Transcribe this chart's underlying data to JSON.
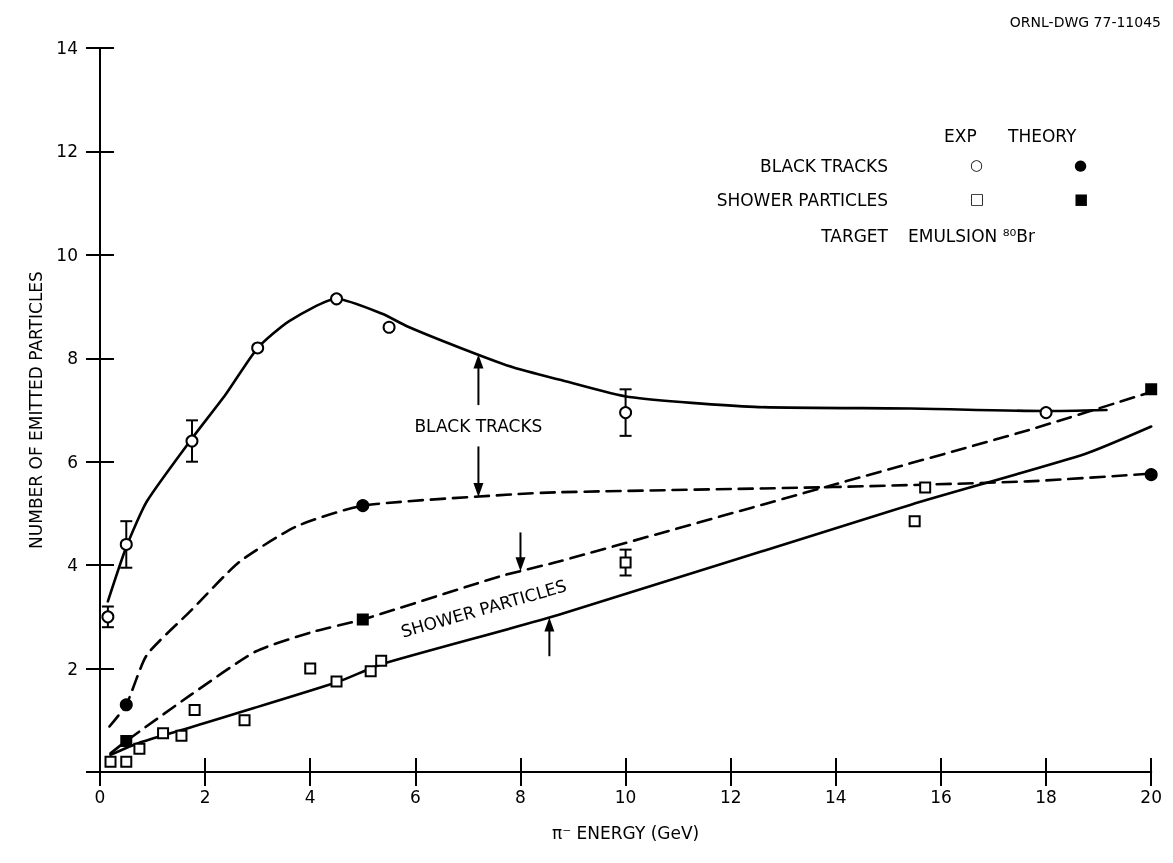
{
  "chart_data": {
    "type": "scatter",
    "xlabel": "π⁻ ENERGY (GeV)",
    "ylabel": "NUMBER OF EMITTED PARTICLES",
    "xlim": [
      0,
      20
    ],
    "xticks": [
      0,
      2,
      4,
      6,
      8,
      10,
      12,
      14,
      16,
      18,
      20
    ],
    "ylim": [
      0,
      14
    ],
    "yticks": [
      {
        "value": 0,
        "label": null
      },
      2,
      4,
      6,
      8,
      10,
      12,
      14
    ],
    "grid": false,
    "annotations": [
      "ORNL-DWG 77-11045",
      "EXP",
      "THEORY",
      "BLACK TRACKS",
      "SHOWER PARTICLES",
      "TARGET",
      "EMULSION ⁸⁰Br",
      "○",
      "●",
      "□",
      "■",
      {
        "text": "BLACK TRACKS",
        "x": 7.2,
        "y": 8.05
      },
      {
        "text": "SHOWER PARTICLES",
        "x": 8.0,
        "y": 3.88
      }
    ],
    "series": [
      {
        "type": "line",
        "color": "#000000",
        "marker": "none",
        "line_style": "solid",
        "x": [
          0.15,
          0.5,
          0.89,
          1.75,
          2.39,
          3,
          3.6,
          4.5,
          5.37,
          5.84,
          6.86,
          7.87,
          8.73,
          10.07,
          12.45,
          15.43,
          18,
          19.15
        ],
        "values": [
          3.3,
          4.35,
          5.23,
          6.45,
          7.3,
          8.2,
          8.72,
          9.15,
          8.86,
          8.62,
          8.2,
          7.82,
          7.59,
          7.25,
          7.06,
          7.03,
          6.98,
          7.0
        ]
      },
      {
        "type": "line",
        "color": "#000000",
        "marker": "none",
        "line_style": "dashed",
        "x": [
          0.18,
          0.5,
          0.89,
          1.7,
          2.65,
          3.74,
          5,
          7.87,
          8.73,
          13.94,
          17.66,
          20
        ],
        "values": [
          0.88,
          1.3,
          2.26,
          3.09,
          4.06,
          4.75,
          5.15,
          5.37,
          5.41,
          5.51,
          5.62,
          5.77
        ]
      },
      {
        "type": "line",
        "color": "#000000",
        "marker": "none",
        "line_style": "dashed",
        "x": [
          0.2,
          0.5,
          1.74,
          2.96,
          4.05,
          5,
          7.6,
          8.73,
          13.94,
          17.66,
          20
        ],
        "values": [
          0.36,
          0.6,
          1.5,
          2.33,
          2.71,
          2.95,
          3.78,
          4.07,
          5.55,
          6.61,
          7.35
        ]
      },
      {
        "type": "line",
        "color": "#000000",
        "marker": "none",
        "line_style": "solid",
        "x": [
          0.2,
          0.76,
          1.84,
          4.52,
          5.37,
          8.73,
          15.43,
          18.74,
          20
        ],
        "values": [
          0.33,
          0.57,
          0.9,
          1.74,
          2.09,
          3.04,
          5.17,
          6.15,
          6.68
        ]
      },
      {
        "color": "#ffffff",
        "marker": "circle",
        "x": [
          0.15,
          0.5,
          1.75,
          3,
          4.5,
          5.5,
          10,
          18
        ],
        "values": [
          3.0,
          4.4,
          6.4,
          8.2,
          9.15,
          8.6,
          6.95,
          6.95
        ],
        "errors": [
          0.2,
          0.45,
          0.4,
          null,
          null,
          null,
          0.45,
          null
        ]
      },
      {
        "color": "#000000",
        "marker": "circle",
        "x": [
          0.5,
          5,
          20
        ],
        "values": [
          1.3,
          5.15,
          5.75
        ]
      },
      {
        "color": "#ffffff",
        "marker": "square",
        "x": [
          0.2,
          0.5,
          0.75,
          1.2,
          1.55,
          1.8,
          2.75,
          4,
          4.5,
          5.15,
          5.35,
          10,
          15.5,
          15.7
        ],
        "values": [
          0.2,
          0.2,
          0.45,
          0.75,
          0.7,
          1.2,
          1.0,
          2.0,
          1.75,
          1.95,
          2.15,
          4.05,
          4.85,
          5.5
        ],
        "errors": [
          null,
          null,
          null,
          null,
          null,
          null,
          null,
          null,
          null,
          null,
          null,
          0.25,
          null,
          null
        ]
      },
      {
        "color": "#000000",
        "marker": "square",
        "x": [
          0.5,
          5,
          20
        ],
        "values": [
          0.6,
          2.95,
          7.4
        ]
      }
    ]
  }
}
